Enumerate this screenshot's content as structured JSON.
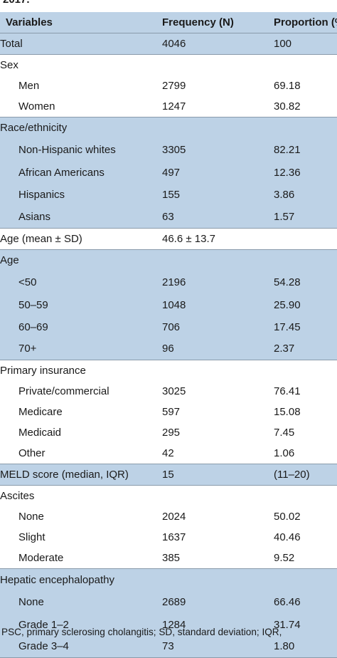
{
  "caption_top": "2017.",
  "headers": {
    "variables": "Variables",
    "frequency": "Frequency (N)",
    "proportion": "Proportion (%)"
  },
  "rows": {
    "total": {
      "label": "Total",
      "frequency": "4046",
      "proportion": "100"
    },
    "sex": {
      "label": "Sex"
    },
    "men": {
      "label": "Men",
      "frequency": "2799",
      "proportion": "69.18"
    },
    "women": {
      "label": "Women",
      "frequency": "1247",
      "proportion": "30.82"
    },
    "race": {
      "label": "Race/ethnicity"
    },
    "nhw": {
      "label": "Non-Hispanic whites",
      "frequency": "3305",
      "proportion": "82.21"
    },
    "aa": {
      "label": "African Americans",
      "frequency": "497",
      "proportion": "12.36"
    },
    "hisp": {
      "label": "Hispanics",
      "frequency": "155",
      "proportion": "3.86"
    },
    "asian": {
      "label": "Asians",
      "frequency": "63",
      "proportion": "1.57"
    },
    "age_mean": {
      "label": "Age (mean ± SD)",
      "frequency": "46.6 ± 13.7"
    },
    "age": {
      "label": "Age"
    },
    "age_lt50": {
      "label": "<50",
      "frequency": "2196",
      "proportion": "54.28"
    },
    "age_50": {
      "label": "50–59",
      "frequency": "1048",
      "proportion": "25.90"
    },
    "age_60": {
      "label": "60–69",
      "frequency": "706",
      "proportion": "17.45"
    },
    "age_70": {
      "label": "70+",
      "frequency": "96",
      "proportion": "2.37"
    },
    "insurance": {
      "label": "Primary insurance"
    },
    "private": {
      "label": "Private/commercial",
      "frequency": "3025",
      "proportion": "76.41"
    },
    "medicare": {
      "label": "Medicare",
      "frequency": "597",
      "proportion": "15.08"
    },
    "medicaid": {
      "label": "Medicaid",
      "frequency": "295",
      "proportion": "7.45"
    },
    "other": {
      "label": "Other",
      "frequency": "42",
      "proportion": "1.06"
    },
    "meld": {
      "label": "MELD score (median, IQR)",
      "frequency": "15",
      "proportion": "(11–20)"
    },
    "ascites": {
      "label": "Ascites"
    },
    "asc_none": {
      "label": "None",
      "frequency": "2024",
      "proportion": "50.02"
    },
    "asc_slight": {
      "label": "Slight",
      "frequency": "1637",
      "proportion": "40.46"
    },
    "asc_mod": {
      "label": "Moderate",
      "frequency": "385",
      "proportion": "9.52"
    },
    "he": {
      "label": "Hepatic encephalopathy"
    },
    "he_none": {
      "label": "None",
      "frequency": "2689",
      "proportion": "66.46"
    },
    "he_g12": {
      "label": "Grade 1–2",
      "frequency": "1284",
      "proportion": "31.74"
    },
    "he_g34": {
      "label": "Grade 3–4",
      "frequency": "73",
      "proportion": "1.80"
    }
  },
  "footnote": "PSC, primary sclerosing cholangitis; SD, standard deviation; IQR,"
}
